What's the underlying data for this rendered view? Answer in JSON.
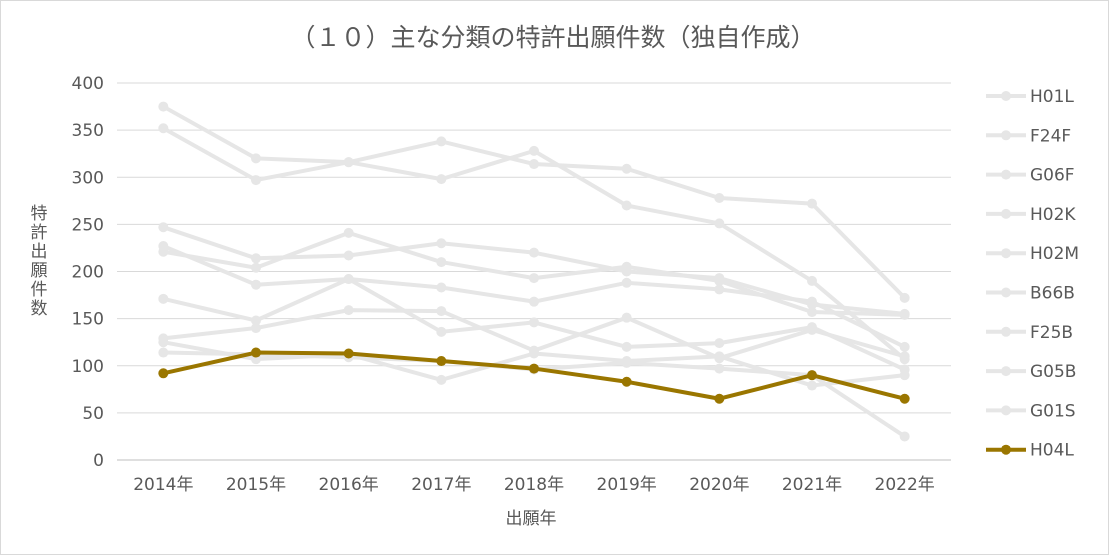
{
  "chart_data": {
    "type": "line",
    "title": "（１０）主な分類の特許出願件数（独自作成）",
    "xlabel": "出願年",
    "ylabel": "特許出願件数",
    "ylim": [
      0,
      400
    ],
    "yticks": [
      0,
      50,
      100,
      150,
      200,
      250,
      300,
      350,
      400
    ],
    "grid": true,
    "legend_position": "right",
    "categories": [
      "2014年",
      "2015年",
      "2016年",
      "2017年",
      "2018年",
      "2019年",
      "2020年",
      "2021年",
      "2022年"
    ],
    "series": [
      {
        "name": "H01L",
        "color": "#e6e6e6",
        "values": [
          375,
          320,
          316,
          338,
          314,
          309,
          278,
          272,
          172
        ]
      },
      {
        "name": "F24F",
        "color": "#e6e6e6",
        "values": [
          352,
          297,
          316,
          298,
          328,
          270,
          251,
          190,
          107
        ]
      },
      {
        "name": "G06F",
        "color": "#e6e6e6",
        "values": [
          247,
          214,
          217,
          230,
          220,
          200,
          193,
          165,
          155
        ]
      },
      {
        "name": "H02K",
        "color": "#e6e6e6",
        "values": [
          227,
          186,
          192,
          183,
          168,
          188,
          181,
          168,
          120
        ]
      },
      {
        "name": "H02M",
        "color": "#e6e6e6",
        "values": [
          221,
          204,
          241,
          210,
          193,
          205,
          190,
          157,
          154
        ]
      },
      {
        "name": "B66B",
        "color": "#e6e6e6",
        "values": [
          171,
          148,
          192,
          136,
          146,
          120,
          124,
          141,
          96
        ]
      },
      {
        "name": "F25B",
        "color": "#e6e6e6",
        "values": [
          129,
          140,
          159,
          158,
          116,
          151,
          108,
          138,
          110
        ]
      },
      {
        "name": "G05B",
        "color": "#e6e6e6",
        "values": [
          125,
          107,
          112,
          85,
          113,
          105,
          110,
          79,
          90
        ]
      },
      {
        "name": "G01S",
        "color": "#e6e6e6",
        "values": [
          114,
          112,
          109,
          105,
          96,
          103,
          97,
          90,
          25
        ]
      },
      {
        "name": "H04L",
        "color": "#9a7600",
        "values": [
          92,
          114,
          113,
          105,
          97,
          83,
          65,
          90,
          65
        ]
      }
    ]
  }
}
